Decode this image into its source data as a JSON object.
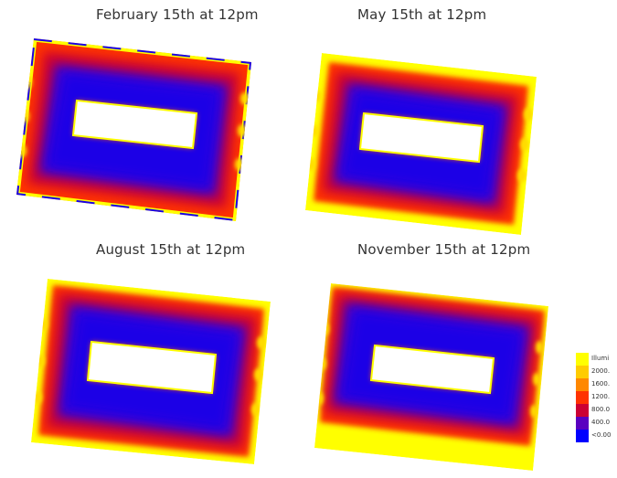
{
  "panels": [
    {
      "title": "February 15th at 12pm"
    },
    {
      "title": "May 15th at 12pm"
    },
    {
      "title": "August 15th at 12pm"
    },
    {
      "title": "November 15th at 12pm"
    }
  ],
  "colors": {
    "yellow": "#ffff00",
    "orange": "#ffa500",
    "red": "#ff0000",
    "dark_red": "#cc0033",
    "purple": "#6a0dad",
    "blue": "#1a00e6",
    "white": "#ffffff"
  },
  "legend": {
    "items": [
      {
        "label": "Illumi",
        "color": "#ffff00"
      },
      {
        "label": "2000.",
        "color": "#ffcc00"
      },
      {
        "label": "1600.",
        "color": "#ff8800"
      },
      {
        "label": "1200.",
        "color": "#ff3300"
      },
      {
        "label": "800.0",
        "color": "#cc0033"
      },
      {
        "label": "400.0",
        "color": "#5a00c0"
      },
      {
        "label": "<0.00",
        "color": "#0000ff"
      }
    ]
  }
}
